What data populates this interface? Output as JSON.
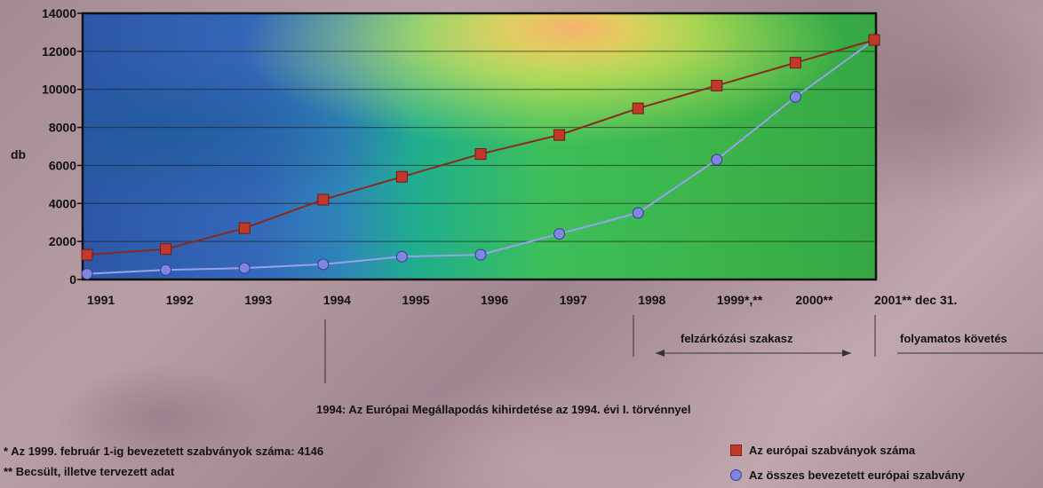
{
  "chart_data": {
    "type": "line",
    "ylabel": "db",
    "ylim": [
      0,
      14000
    ],
    "yticks": [
      "0",
      "2000",
      "4000",
      "6000",
      "8000",
      "10000",
      "12000",
      "14000"
    ],
    "grid": true,
    "categories": [
      "1991",
      "1992",
      "1993",
      "1994",
      "1995",
      "1996",
      "1997",
      "1998",
      "1999*,**",
      "2000**",
      "2001** dec 31."
    ],
    "series": [
      {
        "name": "Az európai szabványok száma",
        "color": "#c0392b",
        "marker": "square",
        "values": [
          1300,
          1600,
          2700,
          4200,
          5400,
          6600,
          7600,
          9000,
          10200,
          11400,
          12600
        ]
      },
      {
        "name": "Az összes bevezetett európai szabvány",
        "color": "#7f86e0",
        "marker": "circle",
        "values": [
          300,
          500,
          600,
          800,
          1200,
          1300,
          2400,
          3500,
          6300,
          9600,
          12600
        ]
      }
    ]
  },
  "annotations": {
    "event_note": "1994: Az Európai Megállapodás kihirdetése az 1994. évi I. törvénnyel",
    "phase_catchup": "felzárkózási szakasz",
    "phase_following": "folyamatos követés"
  },
  "footnotes": {
    "note1": "* Az 1999. február 1-ig bevezetett szabványok száma: 4146",
    "note2": "** Becsült, illetve tervezett adat"
  }
}
